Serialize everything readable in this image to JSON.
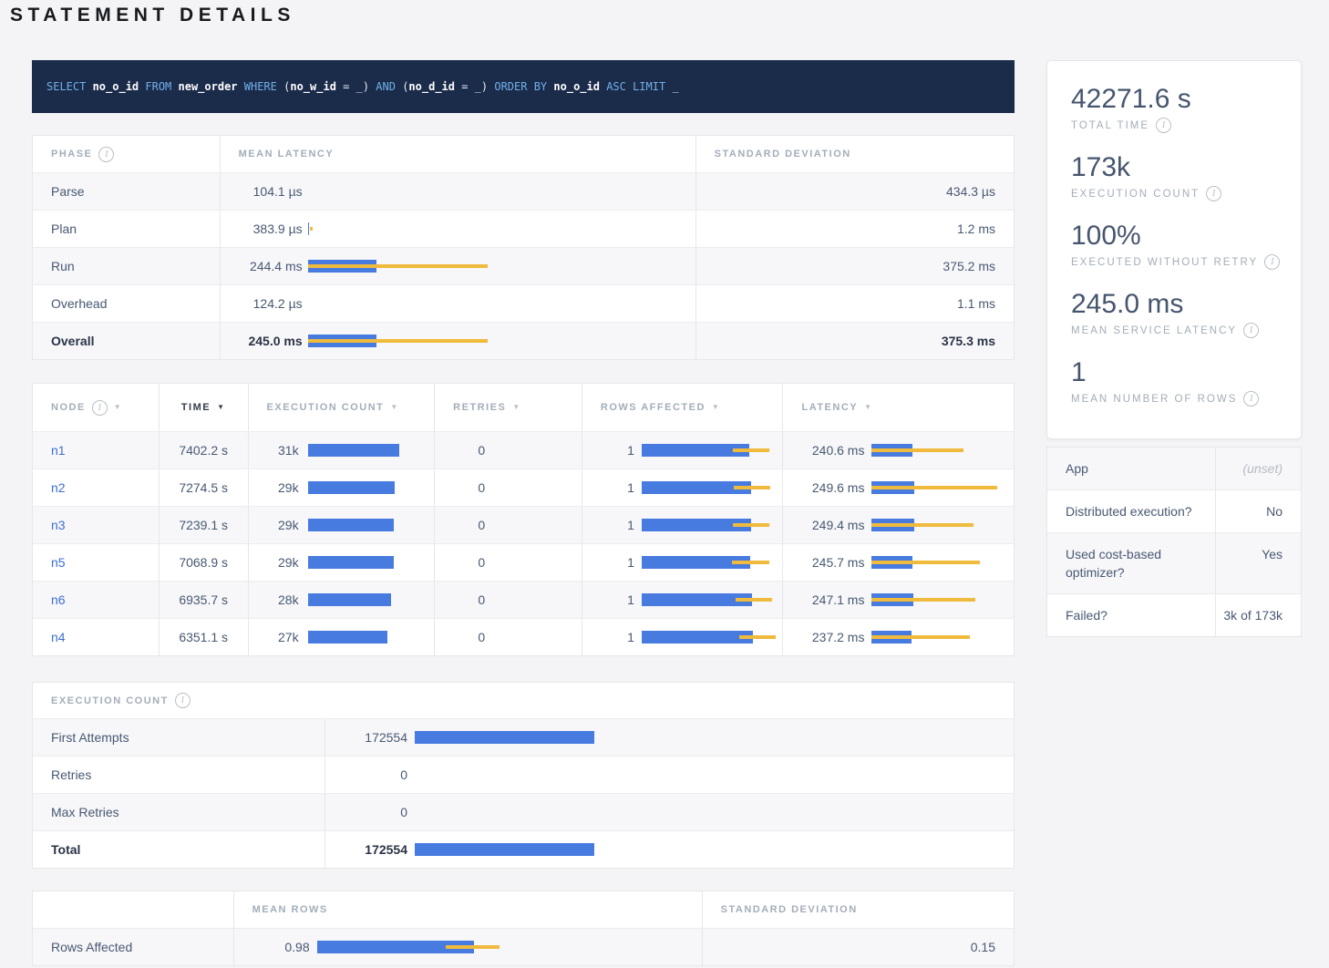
{
  "title": "STATEMENT DETAILS",
  "colors": {
    "bar_blue": "#477be0",
    "bar_yellow": "#f0ba3c",
    "sql_background": "#1b2b4a",
    "sql_keyword": "#71b1ea",
    "link_blue": "#3d6fd0"
  },
  "sql": {
    "tokens": [
      {
        "t": "SELECT ",
        "k": "kw"
      },
      {
        "t": "no_o_id ",
        "k": "id"
      },
      {
        "t": "FROM ",
        "k": "kw"
      },
      {
        "t": "new_order ",
        "k": "id"
      },
      {
        "t": "WHERE ",
        "k": "kw"
      },
      {
        "t": "(",
        "k": "p"
      },
      {
        "t": "no_w_id",
        "k": "id"
      },
      {
        "t": " = _) ",
        "k": "p"
      },
      {
        "t": "AND ",
        "k": "kw"
      },
      {
        "t": "(",
        "k": "p"
      },
      {
        "t": "no_d_id",
        "k": "id"
      },
      {
        "t": " = _) ",
        "k": "p"
      },
      {
        "t": "ORDER BY ",
        "k": "kw"
      },
      {
        "t": "no_o_id ",
        "k": "id"
      },
      {
        "t": "ASC LIMIT ",
        "k": "kw"
      },
      {
        "t": "_",
        "k": "p"
      }
    ]
  },
  "phase_table": {
    "headers": [
      {
        "label": "Phase",
        "info": true
      },
      {
        "label": "Mean Latency"
      },
      {
        "label": "Standard Deviation"
      }
    ],
    "rows": [
      {
        "phase": "Parse",
        "mean": "104.1 µs",
        "bar": null,
        "std": "434.3 µs",
        "bold": false
      },
      {
        "phase": "Plan",
        "mean": "383.9 µs",
        "bar": {
          "blue": 1,
          "dev": [
            2,
            5
          ]
        },
        "std": "1.2 ms",
        "bold": false
      },
      {
        "phase": "Run",
        "mean": "244.4 ms",
        "bar": {
          "blue": 75,
          "dev": [
            0,
            197
          ]
        },
        "std": "375.2 ms",
        "bold": false
      },
      {
        "phase": "Overhead",
        "mean": "124.2 µs",
        "bar": null,
        "std": "1.1 ms",
        "bold": false
      },
      {
        "phase": "Overall",
        "mean": "245.0 ms",
        "bar": {
          "blue": 75,
          "dev": [
            0,
            197
          ]
        },
        "std": "375.3 ms",
        "bold": true
      }
    ]
  },
  "node_table": {
    "headers": [
      {
        "label": "Node",
        "info": true,
        "sort": true,
        "active": false
      },
      {
        "label": "Time",
        "sort": true,
        "active": true
      },
      {
        "label": "Execution Count",
        "sort": true,
        "active": false
      },
      {
        "label": "Retries",
        "sort": true,
        "active": false
      },
      {
        "label": "Rows Affected",
        "sort": true,
        "active": false
      },
      {
        "label": "Latency",
        "sort": true,
        "active": false
      }
    ],
    "rows": [
      {
        "node": "n1",
        "time": "7402.2 s",
        "exec": {
          "text": "31k",
          "bar": {
            "blue": 100
          }
        },
        "retries": "0",
        "rows": {
          "text": "1",
          "bar": {
            "blue": 118,
            "dev": [
              100,
              140
            ]
          }
        },
        "latency": {
          "text": "240.6 ms",
          "bar": {
            "blue": 45,
            "dev": [
              0,
              101
            ]
          }
        }
      },
      {
        "node": "n2",
        "time": "7274.5 s",
        "exec": {
          "text": "29k",
          "bar": {
            "blue": 95
          }
        },
        "retries": "0",
        "rows": {
          "text": "1",
          "bar": {
            "blue": 120,
            "dev": [
              101,
              141
            ]
          }
        },
        "latency": {
          "text": "249.6 ms",
          "bar": {
            "blue": 47,
            "dev": [
              0,
              138
            ]
          }
        }
      },
      {
        "node": "n3",
        "time": "7239.1 s",
        "exec": {
          "text": "29k",
          "bar": {
            "blue": 94
          }
        },
        "retries": "0",
        "rows": {
          "text": "1",
          "bar": {
            "blue": 120,
            "dev": [
              100,
              140
            ]
          }
        },
        "latency": {
          "text": "249.4 ms",
          "bar": {
            "blue": 47,
            "dev": [
              0,
              112
            ]
          }
        }
      },
      {
        "node": "n5",
        "time": "7068.9 s",
        "exec": {
          "text": "29k",
          "bar": {
            "blue": 94
          }
        },
        "retries": "0",
        "rows": {
          "text": "1",
          "bar": {
            "blue": 119,
            "dev": [
              99,
              140
            ]
          }
        },
        "latency": {
          "text": "245.7 ms",
          "bar": {
            "blue": 45,
            "dev": [
              0,
              119
            ]
          }
        }
      },
      {
        "node": "n6",
        "time": "6935.7 s",
        "exec": {
          "text": "28k",
          "bar": {
            "blue": 91
          }
        },
        "retries": "0",
        "rows": {
          "text": "1",
          "bar": {
            "blue": 121,
            "dev": [
              103,
              143
            ]
          }
        },
        "latency": {
          "text": "247.1 ms",
          "bar": {
            "blue": 46,
            "dev": [
              0,
              114
            ]
          }
        }
      },
      {
        "node": "n4",
        "time": "6351.1 s",
        "exec": {
          "text": "27k",
          "bar": {
            "blue": 87
          }
        },
        "retries": "0",
        "rows": {
          "text": "1",
          "bar": {
            "blue": 122,
            "dev": [
              107,
              147
            ]
          }
        },
        "latency": {
          "text": "237.2 ms",
          "bar": {
            "blue": 44,
            "dev": [
              0,
              108
            ]
          }
        }
      }
    ]
  },
  "execution_table": {
    "header": {
      "label": "Execution Count",
      "info": true
    },
    "rows": [
      {
        "label": "First Attempts",
        "value": "172554",
        "bar": {
          "blue": 197
        },
        "bold": false
      },
      {
        "label": "Retries",
        "value": "0",
        "bar": null,
        "bold": false
      },
      {
        "label": "Max Retries",
        "value": "0",
        "bar": null,
        "bold": false
      },
      {
        "label": "Total",
        "value": "172554",
        "bar": {
          "blue": 197
        },
        "bold": true
      }
    ]
  },
  "rows_table": {
    "headers": [
      {
        "label": ""
      },
      {
        "label": "Mean Rows"
      },
      {
        "label": "Standard Deviation"
      }
    ],
    "rows": [
      {
        "label": "Rows Affected",
        "mean": "0.98",
        "bar": {
          "blue": 172,
          "dev": [
            141,
            200
          ]
        },
        "std": "0.15"
      }
    ]
  },
  "summary": {
    "stats": [
      {
        "value": "42271.6 s",
        "label": "Total Time"
      },
      {
        "value": "173k",
        "label": "Execution Count"
      },
      {
        "value": "100%",
        "label": "Executed without Retry"
      },
      {
        "value": "245.0 ms",
        "label": "Mean Service Latency"
      },
      {
        "value": "1",
        "label": "Mean Number of Rows"
      }
    ]
  },
  "details_table": {
    "rows": [
      {
        "label": "App",
        "value": "(unset)",
        "muted": true
      },
      {
        "label": "Distributed execution?",
        "value": "No",
        "muted": false
      },
      {
        "label": "Used cost-based optimizer?",
        "value": "Yes",
        "muted": false
      },
      {
        "label": "Failed?",
        "value": "3k of 173k",
        "muted": false
      }
    ]
  }
}
